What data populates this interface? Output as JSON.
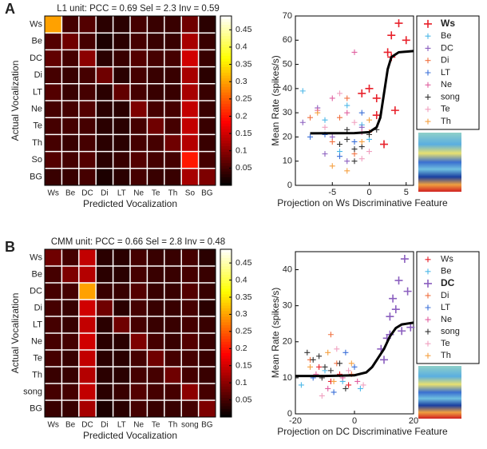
{
  "panel_labels": [
    "A",
    "B"
  ],
  "chart_data": [
    {
      "type": "heatmap",
      "title": "L1 unit: PCC = 0.69 Sel = 2.3 Inv = 0.59",
      "xlabel": "Predicted Vocalization",
      "ylabel": "Actual Vocalization",
      "categories": [
        "Ws",
        "Be",
        "DC",
        "Di",
        "LT",
        "Ne",
        "Te",
        "Th",
        "So",
        "BG"
      ],
      "colormap": "hot",
      "clim": [
        0,
        0.49
      ],
      "cbticks": [
        0.05,
        0.1,
        0.15,
        0.2,
        0.25,
        0.3,
        0.35,
        0.4,
        0.45
      ],
      "values": [
        [
          0.3,
          0.05,
          0.06,
          0.03,
          0.03,
          0.05,
          0.04,
          0.04,
          0.08,
          0.03
        ],
        [
          0.06,
          0.08,
          0.05,
          0.02,
          0.03,
          0.05,
          0.04,
          0.04,
          0.12,
          0.04
        ],
        [
          0.07,
          0.05,
          0.1,
          0.03,
          0.04,
          0.06,
          0.05,
          0.05,
          0.15,
          0.04
        ],
        [
          0.05,
          0.04,
          0.05,
          0.08,
          0.03,
          0.05,
          0.04,
          0.04,
          0.12,
          0.03
        ],
        [
          0.06,
          0.04,
          0.05,
          0.03,
          0.07,
          0.05,
          0.04,
          0.04,
          0.12,
          0.04
        ],
        [
          0.05,
          0.05,
          0.06,
          0.03,
          0.03,
          0.09,
          0.05,
          0.05,
          0.14,
          0.04
        ],
        [
          0.05,
          0.05,
          0.05,
          0.03,
          0.03,
          0.05,
          0.08,
          0.05,
          0.14,
          0.04
        ],
        [
          0.05,
          0.04,
          0.05,
          0.03,
          0.03,
          0.05,
          0.05,
          0.08,
          0.13,
          0.04
        ],
        [
          0.06,
          0.05,
          0.06,
          0.03,
          0.04,
          0.06,
          0.05,
          0.05,
          0.2,
          0.05
        ],
        [
          0.04,
          0.04,
          0.05,
          0.02,
          0.03,
          0.05,
          0.04,
          0.04,
          0.12,
          0.09
        ]
      ]
    },
    {
      "type": "scatter",
      "xlabel": "Projection on Ws Discriminative Feature",
      "ylabel": "Mean Rate (spikes/s)",
      "xlim": [
        -10,
        6
      ],
      "ylim": [
        0,
        70
      ],
      "xticks": [
        -5,
        0,
        5
      ],
      "yticks": [
        0,
        10,
        20,
        30,
        40,
        50,
        60,
        70
      ],
      "highlight_series": 0,
      "fit": {
        "color": "#000000",
        "x": [
          -8,
          -2,
          0,
          1,
          1.5,
          2,
          2.5,
          3,
          4,
          6
        ],
        "y": [
          21.5,
          21.6,
          22,
          24,
          28,
          38,
          48,
          53,
          55,
          55.5
        ]
      },
      "series": [
        {
          "name": "Ws",
          "color": "#e8202a",
          "x": [
            -1,
            0,
            1,
            2,
            2.5,
            3,
            3,
            3.5,
            4,
            5,
            1
          ],
          "y": [
            38,
            40,
            29,
            17,
            55,
            62,
            53,
            31,
            67,
            60,
            36
          ]
        },
        {
          "name": "Be",
          "color": "#4db8e8",
          "x": [
            -9,
            -6,
            -3,
            -1,
            0,
            -4
          ],
          "y": [
            39,
            27,
            33,
            25,
            19,
            14
          ]
        },
        {
          "name": "DC",
          "color": "#8b5fbf",
          "x": [
            -9,
            -7,
            -5,
            -3,
            -1,
            -6
          ],
          "y": [
            26,
            32,
            20,
            10,
            24,
            13
          ]
        },
        {
          "name": "Di",
          "color": "#f07040",
          "x": [
            -8,
            -4,
            -2,
            -5,
            0,
            -3
          ],
          "y": [
            28,
            28,
            13,
            18,
            22,
            36
          ]
        },
        {
          "name": "LT",
          "color": "#3a6fd8",
          "x": [
            -8,
            -6,
            -4,
            -2,
            -1
          ],
          "y": [
            20,
            21,
            12,
            18,
            30
          ]
        },
        {
          "name": "Ne",
          "color": "#e060a0",
          "x": [
            -7,
            -5,
            -3,
            -2,
            -1
          ],
          "y": [
            31,
            36,
            30,
            55,
            22
          ]
        },
        {
          "name": "song",
          "color": "#333333",
          "x": [
            -4,
            -3,
            -2,
            -1,
            0,
            -3,
            -2,
            1
          ],
          "y": [
            17,
            19,
            15,
            16,
            21,
            23,
            10,
            23
          ]
        },
        {
          "name": "Te",
          "color": "#f0a0c0",
          "x": [
            -6,
            -4,
            -2,
            0,
            -1
          ],
          "y": [
            24,
            38,
            26,
            14,
            11
          ]
        },
        {
          "name": "Th",
          "color": "#f5a040",
          "x": [
            -7,
            -5,
            -3,
            -1,
            0
          ],
          "y": [
            30,
            8,
            6,
            18,
            27
          ]
        }
      ]
    },
    {
      "type": "heatmap",
      "title": "CMM unit: PCC = 0.66 Sel = 2.8 Inv = 0.48",
      "xlabel": "Predicted Vocalization",
      "ylabel": "Actual Vocalization",
      "categories": [
        "Ws",
        "Be",
        "DC",
        "Di",
        "LT",
        "Ne",
        "Te",
        "Th",
        "song",
        "BG"
      ],
      "colormap": "hot",
      "clim": [
        0,
        0.49
      ],
      "cbticks": [
        0.05,
        0.1,
        0.15,
        0.2,
        0.25,
        0.3,
        0.35,
        0.4,
        0.45
      ],
      "values": [
        [
          0.08,
          0.05,
          0.14,
          0.03,
          0.03,
          0.05,
          0.04,
          0.04,
          0.05,
          0.03
        ],
        [
          0.05,
          0.09,
          0.13,
          0.03,
          0.03,
          0.05,
          0.04,
          0.04,
          0.05,
          0.04
        ],
        [
          0.05,
          0.05,
          0.3,
          0.04,
          0.04,
          0.06,
          0.04,
          0.04,
          0.06,
          0.04
        ],
        [
          0.05,
          0.04,
          0.15,
          0.08,
          0.03,
          0.05,
          0.04,
          0.04,
          0.05,
          0.03
        ],
        [
          0.05,
          0.04,
          0.14,
          0.03,
          0.08,
          0.05,
          0.04,
          0.04,
          0.05,
          0.04
        ],
        [
          0.05,
          0.05,
          0.15,
          0.03,
          0.03,
          0.09,
          0.05,
          0.04,
          0.06,
          0.04
        ],
        [
          0.05,
          0.04,
          0.14,
          0.03,
          0.03,
          0.05,
          0.08,
          0.05,
          0.05,
          0.04
        ],
        [
          0.04,
          0.04,
          0.13,
          0.03,
          0.03,
          0.05,
          0.05,
          0.08,
          0.05,
          0.04
        ],
        [
          0.05,
          0.05,
          0.14,
          0.03,
          0.04,
          0.06,
          0.05,
          0.05,
          0.1,
          0.05
        ],
        [
          0.04,
          0.04,
          0.12,
          0.02,
          0.03,
          0.05,
          0.04,
          0.04,
          0.05,
          0.09
        ]
      ]
    },
    {
      "type": "scatter",
      "xlabel": "Projection on DC Discriminative Feature",
      "ylabel": "Mean Rate (spikes/s)",
      "xlim": [
        -20,
        20
      ],
      "ylim": [
        0,
        45
      ],
      "xticks": [
        -20,
        0,
        20
      ],
      "yticks": [
        0,
        10,
        20,
        30,
        40
      ],
      "highlight_series": 2,
      "fit": {
        "color": "#000000",
        "x": [
          -20,
          -10,
          0,
          4,
          6,
          8,
          10,
          12,
          14,
          16,
          20
        ],
        "y": [
          10.5,
          10.5,
          10.7,
          11.5,
          13,
          15.5,
          18,
          21.5,
          23.8,
          24.8,
          25.3
        ]
      },
      "series": [
        {
          "name": "Ws",
          "color": "#e8202a",
          "x": [
            -12,
            -8,
            -5,
            -2
          ],
          "y": [
            13,
            9,
            11,
            8
          ]
        },
        {
          "name": "Be",
          "color": "#4db8e8",
          "x": [
            -18,
            -10,
            -4,
            2
          ],
          "y": [
            8,
            12,
            9,
            7
          ]
        },
        {
          "name": "DC",
          "color": "#8b5fbf",
          "x": [
            10,
            11,
            12,
            13,
            14,
            15,
            17,
            18,
            19,
            16,
            9,
            12
          ],
          "y": [
            15,
            21,
            27,
            32,
            29,
            37,
            43,
            34,
            24,
            23,
            18,
            22
          ]
        },
        {
          "name": "Di",
          "color": "#f07040",
          "x": [
            -15,
            -8,
            -6,
            -1
          ],
          "y": [
            15,
            22,
            14,
            11
          ]
        },
        {
          "name": "LT",
          "color": "#3a6fd8",
          "x": [
            -14,
            -7,
            -3,
            0
          ],
          "y": [
            10,
            6,
            17,
            13
          ]
        },
        {
          "name": "Ne",
          "color": "#e060a0",
          "x": [
            -13,
            -9,
            -4,
            1
          ],
          "y": [
            11,
            7,
            10,
            9
          ]
        },
        {
          "name": "song",
          "color": "#333333",
          "x": [
            -16,
            -14,
            -12,
            -11,
            -10,
            -8,
            -5,
            -3
          ],
          "y": [
            17,
            15,
            16,
            10,
            13,
            12,
            14,
            7
          ]
        },
        {
          "name": "Te",
          "color": "#f0a0c0",
          "x": [
            -11,
            -6,
            -2,
            3
          ],
          "y": [
            5,
            18,
            12,
            8
          ]
        },
        {
          "name": "Th",
          "color": "#f5a040",
          "x": [
            -15,
            -9,
            -7,
            -1
          ],
          "y": [
            13,
            17,
            9,
            14
          ]
        }
      ]
    }
  ]
}
